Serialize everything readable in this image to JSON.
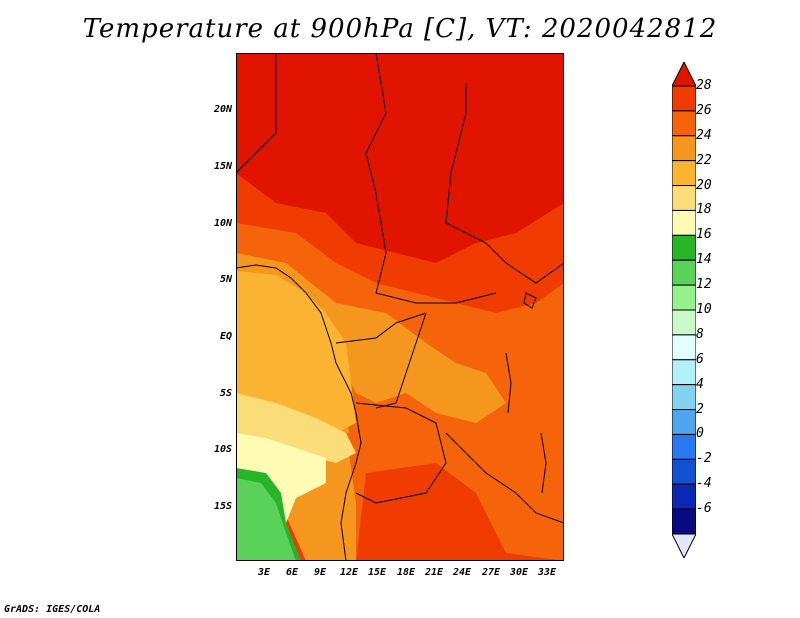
{
  "title": "Temperature at 900hPa [C], VT: 2020042812",
  "credit": "GrADS: IGES/COLA",
  "lat_labels": [
    "20N",
    "15N",
    "10N",
    "5N",
    "EQ",
    "5S",
    "10S",
    "15S"
  ],
  "lon_labels": [
    "3E",
    "6E",
    "9E",
    "12E",
    "15E",
    "18E",
    "21E",
    "24E",
    "27E",
    "30E",
    "33E"
  ],
  "colorbar_labels": [
    "28",
    "26",
    "24",
    "22",
    "20",
    "18",
    "16",
    "14",
    "12",
    "10",
    "8",
    "6",
    "4",
    "2",
    "0",
    "-2",
    "-4",
    "-6"
  ],
  "colorbar_colors": [
    "#e11400",
    "#f03c00",
    "#f5640a",
    "#f5961e",
    "#fab432",
    "#fadc78",
    "#fffab4",
    "#28b428",
    "#5ad25a",
    "#96f08c",
    "#c8fac8",
    "#e1ffff",
    "#b4f0fa",
    "#82d2f0",
    "#50a5f0",
    "#2878f0",
    "#1450d2",
    "#0a28b4",
    "#0a0a80",
    "#e6e6fa"
  ]
}
